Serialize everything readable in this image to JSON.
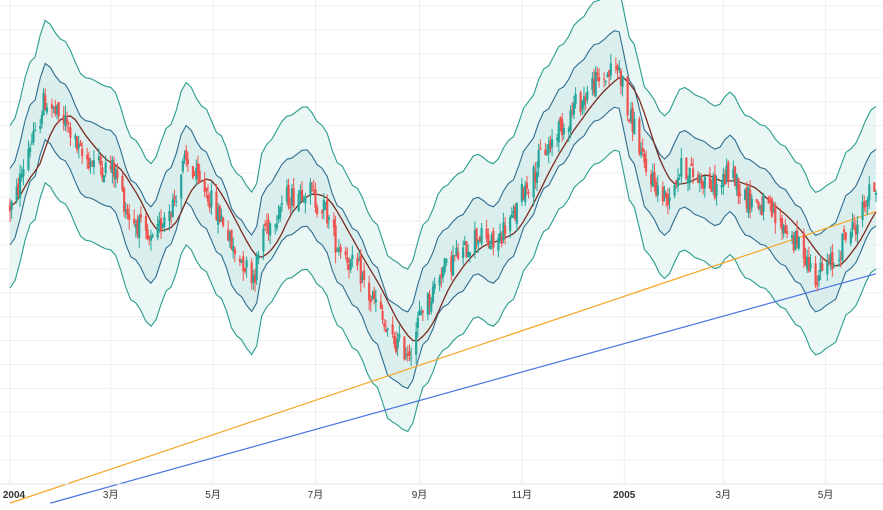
{
  "chart_data": {
    "type": "line",
    "subtype": "candlestick-with-bands",
    "title": "",
    "xlabel": "",
    "ylabel": "",
    "x_ticks": [
      {
        "label": "2004",
        "date": "2004-01-01",
        "bold": true
      },
      {
        "label": "3月",
        "date": "2004-03-01",
        "bold": false
      },
      {
        "label": "5月",
        "date": "2004-05-01",
        "bold": false
      },
      {
        "label": "7月",
        "date": "2004-07-01",
        "bold": false
      },
      {
        "label": "9月",
        "date": "2004-09-01",
        "bold": false
      },
      {
        "label": "11月",
        "date": "2004-11-01",
        "bold": false
      },
      {
        "label": "2005",
        "date": "2005-01-01",
        "bold": true
      },
      {
        "label": "3月",
        "date": "2005-03-01",
        "bold": false
      },
      {
        "label": "5月",
        "date": "2005-05-01",
        "bold": false
      }
    ],
    "x_range": [
      "2004-01-01",
      "2005-05-31"
    ],
    "y_range": [
      0,
      100
    ],
    "grid": true,
    "colors": {
      "up": "#26a69a",
      "down": "#ef5350",
      "middle_band": "#7b2a1f",
      "inner_bands": "#2f6d8f",
      "outer_bands": "#2a9d8f",
      "band_fill": "#e3f4f2",
      "trend_orange": "#f5a623",
      "trend_blue": "#4a74e0",
      "grid": "#eeeeee",
      "axis_text": "#333333"
    },
    "price_path": [
      [
        "2004-01-01",
        58
      ],
      [
        "2004-01-15",
        72
      ],
      [
        "2004-01-22",
        80
      ],
      [
        "2004-02-01",
        76
      ],
      [
        "2004-02-15",
        68
      ],
      [
        "2004-03-01",
        66
      ],
      [
        "2004-03-15",
        55
      ],
      [
        "2004-03-25",
        50
      ],
      [
        "2004-04-05",
        58
      ],
      [
        "2004-04-15",
        67
      ],
      [
        "2004-04-25",
        62
      ],
      [
        "2004-05-05",
        56
      ],
      [
        "2004-05-15",
        48
      ],
      [
        "2004-05-25",
        44
      ],
      [
        "2004-06-01",
        54
      ],
      [
        "2004-06-15",
        60
      ],
      [
        "2004-06-25",
        62
      ],
      [
        "2004-07-05",
        58
      ],
      [
        "2004-07-15",
        50
      ],
      [
        "2004-07-25",
        45
      ],
      [
        "2004-08-05",
        38
      ],
      [
        "2004-08-15",
        30
      ],
      [
        "2004-08-25",
        28
      ],
      [
        "2004-09-05",
        38
      ],
      [
        "2004-09-15",
        45
      ],
      [
        "2004-09-25",
        48
      ],
      [
        "2004-10-05",
        52
      ],
      [
        "2004-10-15",
        50
      ],
      [
        "2004-10-25",
        55
      ],
      [
        "2004-11-05",
        63
      ],
      [
        "2004-11-15",
        70
      ],
      [
        "2004-11-25",
        75
      ],
      [
        "2004-12-05",
        80
      ],
      [
        "2004-12-15",
        84
      ],
      [
        "2004-12-28",
        87
      ],
      [
        "2005-01-05",
        76
      ],
      [
        "2005-01-15",
        65
      ],
      [
        "2005-01-25",
        60
      ],
      [
        "2005-02-05",
        66
      ],
      [
        "2005-02-15",
        64
      ],
      [
        "2005-02-25",
        62
      ],
      [
        "2005-03-05",
        65
      ],
      [
        "2005-03-15",
        60
      ],
      [
        "2005-03-25",
        58
      ],
      [
        "2005-04-05",
        54
      ],
      [
        "2005-04-15",
        50
      ],
      [
        "2005-04-25",
        44
      ],
      [
        "2005-05-05",
        46
      ],
      [
        "2005-05-15",
        53
      ],
      [
        "2005-05-31",
        62
      ]
    ],
    "band_offsets": [
      {
        "name": "outer_upper",
        "offset": 17
      },
      {
        "name": "inner_upper",
        "offset": 8
      },
      {
        "name": "inner_lower",
        "offset": -8
      },
      {
        "name": "outer_lower",
        "offset": -17
      }
    ],
    "trend_lines": [
      {
        "color_key": "trend_orange",
        "start": [
          "2004-01-01",
          -4
        ],
        "end": [
          "2005-05-31",
          57
        ]
      },
      {
        "color_key": "trend_blue",
        "start": [
          "2004-01-25",
          -4
        ],
        "end": [
          "2005-05-31",
          44
        ]
      }
    ]
  }
}
